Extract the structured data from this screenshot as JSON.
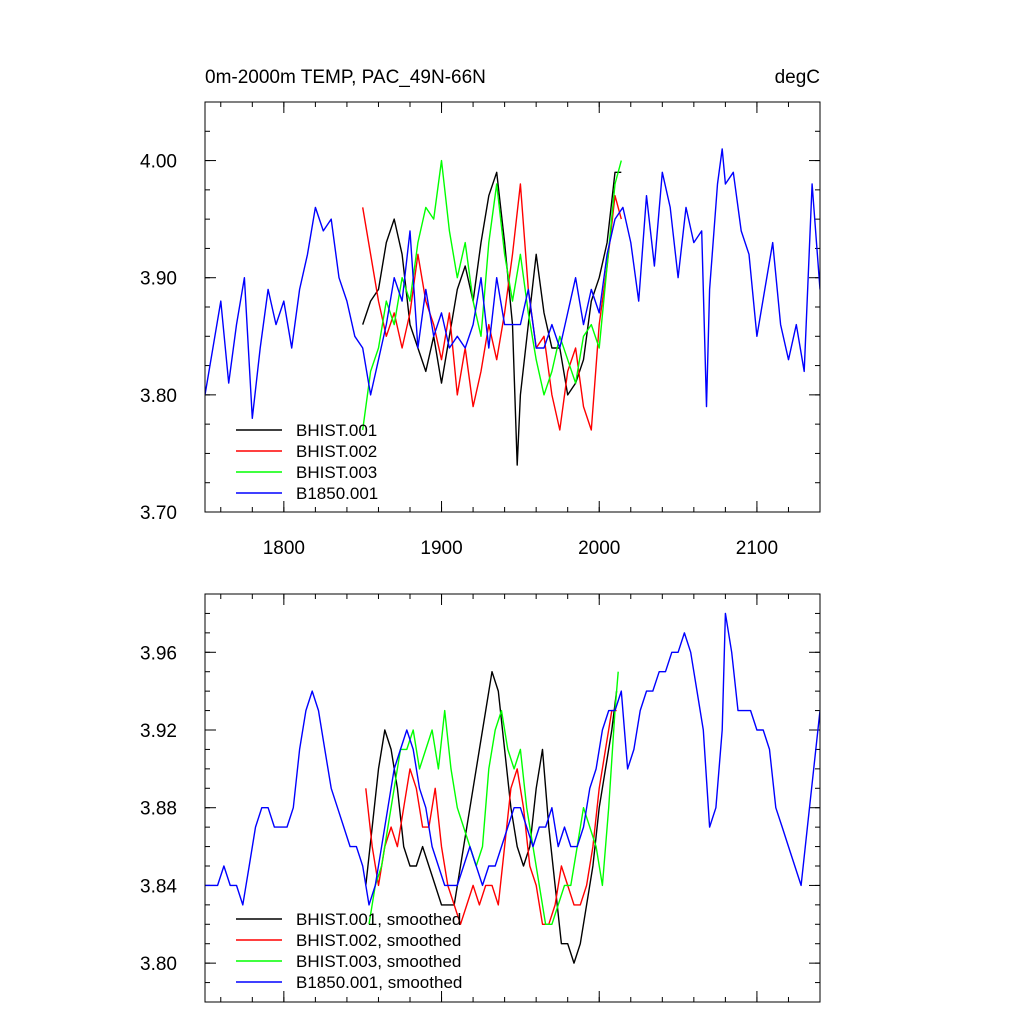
{
  "chart_data": [
    {
      "type": "line",
      "title": "0m-2000m TEMP, PAC_49N-66N",
      "units": "degC",
      "xlim": [
        1750,
        2140
      ],
      "ylim": [
        3.7,
        4.05
      ],
      "xticks": [
        1800,
        1900,
        2000,
        2100
      ],
      "xtick_labels": [
        "1800",
        "1900",
        "2000",
        "2100"
      ],
      "yticks": [
        3.7,
        3.8,
        3.9,
        4.0
      ],
      "ytick_labels": [
        "3.70",
        "3.80",
        "3.90",
        "4.00"
      ],
      "legend_position": "bottom-left",
      "series": [
        {
          "name": "BHIST.001",
          "color": "#000000",
          "x": [
            1850,
            1855,
            1860,
            1865,
            1870,
            1875,
            1880,
            1885,
            1890,
            1895,
            1900,
            1905,
            1910,
            1915,
            1920,
            1925,
            1930,
            1935,
            1940,
            1945,
            1948,
            1950,
            1955,
            1960,
            1965,
            1970,
            1975,
            1980,
            1985,
            1990,
            1995,
            2000,
            2005,
            2010,
            2014
          ],
          "y": [
            3.86,
            3.88,
            3.89,
            3.93,
            3.95,
            3.92,
            3.86,
            3.84,
            3.82,
            3.85,
            3.81,
            3.85,
            3.89,
            3.91,
            3.88,
            3.93,
            3.97,
            3.99,
            3.93,
            3.86,
            3.74,
            3.8,
            3.86,
            3.92,
            3.87,
            3.84,
            3.84,
            3.8,
            3.81,
            3.83,
            3.88,
            3.9,
            3.93,
            3.99,
            3.99
          ]
        },
        {
          "name": "BHIST.002",
          "color": "#ff0000",
          "x": [
            1850,
            1855,
            1860,
            1865,
            1870,
            1875,
            1880,
            1885,
            1890,
            1895,
            1900,
            1905,
            1910,
            1915,
            1920,
            1925,
            1930,
            1935,
            1940,
            1945,
            1950,
            1955,
            1960,
            1965,
            1970,
            1975,
            1980,
            1985,
            1990,
            1995,
            2000,
            2005,
            2010,
            2014
          ],
          "y": [
            3.96,
            3.92,
            3.88,
            3.85,
            3.87,
            3.84,
            3.87,
            3.92,
            3.88,
            3.86,
            3.83,
            3.87,
            3.8,
            3.84,
            3.79,
            3.82,
            3.86,
            3.83,
            3.87,
            3.92,
            3.98,
            3.89,
            3.84,
            3.85,
            3.8,
            3.77,
            3.82,
            3.84,
            3.79,
            3.77,
            3.86,
            3.91,
            3.97,
            3.95
          ]
        },
        {
          "name": "BHIST.003",
          "color": "#00ff00",
          "x": [
            1850,
            1855,
            1860,
            1865,
            1870,
            1875,
            1880,
            1885,
            1890,
            1895,
            1900,
            1905,
            1910,
            1915,
            1920,
            1925,
            1930,
            1935,
            1940,
            1945,
            1950,
            1955,
            1960,
            1965,
            1970,
            1975,
            1980,
            1985,
            1990,
            1995,
            2000,
            2005,
            2010,
            2014
          ],
          "y": [
            3.77,
            3.82,
            3.84,
            3.88,
            3.86,
            3.9,
            3.88,
            3.93,
            3.96,
            3.95,
            4.0,
            3.94,
            3.9,
            3.93,
            3.88,
            3.85,
            3.93,
            3.98,
            3.92,
            3.88,
            3.92,
            3.87,
            3.83,
            3.8,
            3.82,
            3.85,
            3.83,
            3.81,
            3.85,
            3.86,
            3.84,
            3.91,
            3.98,
            4.0
          ]
        },
        {
          "name": "B1850.001",
          "color": "#0000ff",
          "x": [
            1750,
            1755,
            1760,
            1765,
            1770,
            1775,
            1780,
            1785,
            1790,
            1795,
            1800,
            1805,
            1810,
            1815,
            1820,
            1825,
            1830,
            1835,
            1840,
            1845,
            1850,
            1855,
            1860,
            1865,
            1870,
            1875,
            1880,
            1885,
            1890,
            1895,
            1900,
            1905,
            1910,
            1915,
            1920,
            1925,
            1930,
            1935,
            1940,
            1945,
            1950,
            1955,
            1960,
            1965,
            1970,
            1975,
            1980,
            1985,
            1990,
            1995,
            2000,
            2005,
            2010,
            2015,
            2020,
            2025,
            2030,
            2035,
            2040,
            2045,
            2050,
            2055,
            2060,
            2065,
            2068,
            2070,
            2075,
            2078,
            2080,
            2085,
            2090,
            2095,
            2100,
            2105,
            2110,
            2115,
            2120,
            2125,
            2130,
            2135,
            2140
          ],
          "y": [
            3.8,
            3.84,
            3.88,
            3.81,
            3.86,
            3.9,
            3.78,
            3.84,
            3.89,
            3.86,
            3.88,
            3.84,
            3.89,
            3.92,
            3.96,
            3.94,
            3.95,
            3.9,
            3.88,
            3.85,
            3.84,
            3.8,
            3.83,
            3.86,
            3.9,
            3.88,
            3.94,
            3.84,
            3.89,
            3.85,
            3.87,
            3.84,
            3.85,
            3.84,
            3.86,
            3.9,
            3.84,
            3.9,
            3.86,
            3.86,
            3.86,
            3.89,
            3.84,
            3.84,
            3.86,
            3.84,
            3.87,
            3.9,
            3.86,
            3.89,
            3.87,
            3.92,
            3.95,
            3.96,
            3.93,
            3.88,
            3.97,
            3.91,
            3.99,
            3.96,
            3.9,
            3.96,
            3.93,
            3.94,
            3.79,
            3.89,
            3.98,
            4.01,
            3.98,
            3.99,
            3.94,
            3.92,
            3.85,
            3.89,
            3.93,
            3.86,
            3.83,
            3.86,
            3.82,
            3.98,
            3.89
          ]
        }
      ]
    },
    {
      "type": "line",
      "xlim": [
        1750,
        2140
      ],
      "ylim": [
        3.78,
        3.99
      ],
      "xticks": [
        1800,
        1900,
        2000,
        2100
      ],
      "yticks": [
        3.8,
        3.84,
        3.88,
        3.92,
        3.96
      ],
      "ytick_labels": [
        "3.80",
        "3.84",
        "3.88",
        "3.92",
        "3.96"
      ],
      "legend_position": "bottom-left",
      "series": [
        {
          "name": "BHIST.001, smoothed",
          "color": "#000000",
          "x": [
            1852,
            1856,
            1860,
            1864,
            1868,
            1872,
            1876,
            1880,
            1884,
            1888,
            1892,
            1896,
            1900,
            1904,
            1908,
            1912,
            1916,
            1920,
            1924,
            1928,
            1932,
            1936,
            1940,
            1944,
            1948,
            1952,
            1956,
            1960,
            1964,
            1968,
            1972,
            1976,
            1980,
            1984,
            1988,
            1992,
            1996,
            2000,
            2004,
            2008,
            2011
          ],
          "y": [
            3.84,
            3.87,
            3.9,
            3.92,
            3.91,
            3.89,
            3.86,
            3.85,
            3.85,
            3.86,
            3.85,
            3.84,
            3.83,
            3.83,
            3.83,
            3.85,
            3.87,
            3.89,
            3.91,
            3.93,
            3.95,
            3.94,
            3.91,
            3.88,
            3.86,
            3.85,
            3.86,
            3.89,
            3.91,
            3.87,
            3.84,
            3.81,
            3.81,
            3.8,
            3.81,
            3.83,
            3.85,
            3.88,
            3.9,
            3.92,
            3.94
          ]
        },
        {
          "name": "BHIST.002, smoothed",
          "color": "#ff0000",
          "x": [
            1852,
            1856,
            1860,
            1864,
            1868,
            1872,
            1876,
            1880,
            1884,
            1888,
            1892,
            1896,
            1900,
            1904,
            1908,
            1912,
            1916,
            1920,
            1924,
            1928,
            1932,
            1936,
            1940,
            1944,
            1948,
            1952,
            1956,
            1960,
            1964,
            1968,
            1972,
            1976,
            1980,
            1984,
            1988,
            1992,
            1996,
            2000,
            2004,
            2008,
            2011
          ],
          "y": [
            3.89,
            3.86,
            3.84,
            3.86,
            3.87,
            3.86,
            3.88,
            3.9,
            3.89,
            3.87,
            3.87,
            3.89,
            3.86,
            3.84,
            3.83,
            3.82,
            3.83,
            3.84,
            3.83,
            3.84,
            3.84,
            3.83,
            3.86,
            3.89,
            3.9,
            3.88,
            3.85,
            3.84,
            3.82,
            3.82,
            3.83,
            3.85,
            3.84,
            3.83,
            3.83,
            3.84,
            3.86,
            3.89,
            3.91,
            3.93,
            3.93
          ]
        },
        {
          "name": "BHIST.003, smoothed",
          "color": "#00ff00",
          "x": [
            1854,
            1858,
            1862,
            1866,
            1870,
            1874,
            1878,
            1882,
            1886,
            1890,
            1894,
            1898,
            1902,
            1906,
            1910,
            1914,
            1918,
            1922,
            1926,
            1930,
            1934,
            1938,
            1942,
            1946,
            1950,
            1954,
            1958,
            1962,
            1966,
            1970,
            1974,
            1978,
            1982,
            1986,
            1990,
            1994,
            1998,
            2002,
            2006,
            2010,
            2012
          ],
          "y": [
            3.82,
            3.84,
            3.85,
            3.87,
            3.89,
            3.91,
            3.91,
            3.92,
            3.9,
            3.91,
            3.92,
            3.9,
            3.93,
            3.9,
            3.88,
            3.87,
            3.86,
            3.85,
            3.86,
            3.9,
            3.92,
            3.93,
            3.91,
            3.9,
            3.91,
            3.88,
            3.86,
            3.84,
            3.82,
            3.82,
            3.83,
            3.84,
            3.84,
            3.86,
            3.88,
            3.87,
            3.86,
            3.84,
            3.88,
            3.93,
            3.95
          ]
        },
        {
          "name": "B1850.001, smoothed",
          "color": "#0000ff",
          "x": [
            1750,
            1754,
            1758,
            1762,
            1766,
            1770,
            1774,
            1778,
            1782,
            1786,
            1790,
            1794,
            1798,
            1802,
            1806,
            1810,
            1814,
            1818,
            1822,
            1826,
            1830,
            1834,
            1838,
            1842,
            1846,
            1850,
            1854,
            1858,
            1862,
            1866,
            1870,
            1874,
            1878,
            1882,
            1886,
            1890,
            1894,
            1898,
            1902,
            1906,
            1910,
            1914,
            1918,
            1922,
            1926,
            1930,
            1934,
            1938,
            1942,
            1946,
            1950,
            1954,
            1958,
            1962,
            1966,
            1970,
            1974,
            1978,
            1982,
            1986,
            1990,
            1994,
            1998,
            2002,
            2006,
            2010,
            2014,
            2018,
            2022,
            2026,
            2030,
            2034,
            2038,
            2042,
            2046,
            2050,
            2054,
            2058,
            2062,
            2066,
            2070,
            2074,
            2078,
            2080,
            2084,
            2088,
            2092,
            2096,
            2100,
            2104,
            2108,
            2112,
            2116,
            2120,
            2124,
            2128,
            2132,
            2136,
            2140
          ],
          "y": [
            3.84,
            3.84,
            3.84,
            3.85,
            3.84,
            3.84,
            3.83,
            3.85,
            3.87,
            3.88,
            3.88,
            3.87,
            3.87,
            3.87,
            3.88,
            3.91,
            3.93,
            3.94,
            3.93,
            3.91,
            3.89,
            3.88,
            3.87,
            3.86,
            3.86,
            3.85,
            3.83,
            3.84,
            3.86,
            3.88,
            3.9,
            3.91,
            3.92,
            3.91,
            3.89,
            3.88,
            3.86,
            3.85,
            3.84,
            3.84,
            3.84,
            3.85,
            3.86,
            3.85,
            3.84,
            3.85,
            3.85,
            3.86,
            3.87,
            3.88,
            3.88,
            3.87,
            3.86,
            3.87,
            3.87,
            3.88,
            3.86,
            3.87,
            3.86,
            3.86,
            3.87,
            3.89,
            3.9,
            3.92,
            3.93,
            3.93,
            3.94,
            3.9,
            3.91,
            3.93,
            3.94,
            3.94,
            3.95,
            3.95,
            3.96,
            3.96,
            3.97,
            3.96,
            3.94,
            3.92,
            3.87,
            3.88,
            3.92,
            3.98,
            3.96,
            3.93,
            3.93,
            3.93,
            3.92,
            3.92,
            3.91,
            3.88,
            3.87,
            3.86,
            3.85,
            3.84,
            3.87,
            3.9,
            3.93
          ]
        }
      ]
    }
  ]
}
